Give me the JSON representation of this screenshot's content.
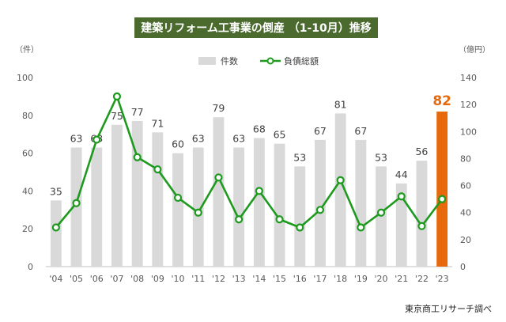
{
  "chart_data": {
    "type": "bar+line",
    "title": "建築リフォーム工事業の倒産 （1-10月）推移",
    "categories": [
      "'04",
      "'05",
      "'06",
      "'07",
      "'08",
      "'09",
      "'10",
      "'11",
      "'12",
      "'13",
      "'14",
      "'15",
      "'16",
      "'17",
      "'18",
      "'19",
      "'20",
      "'21",
      "'22",
      "'23"
    ],
    "series": [
      {
        "name": "件数",
        "type": "bar",
        "axis": "left",
        "values": [
          35,
          63,
          63,
          75,
          77,
          71,
          60,
          63,
          79,
          63,
          68,
          65,
          53,
          67,
          81,
          67,
          53,
          44,
          56,
          82
        ],
        "color": "#d9d9d9",
        "highlight_color": "#e8690c",
        "highlight_index": 19
      },
      {
        "name": "負債総額",
        "type": "line",
        "axis": "right",
        "values": [
          29,
          47,
          94,
          126,
          81,
          72,
          51,
          40,
          66,
          35,
          56,
          35,
          29,
          42,
          64,
          29,
          40,
          52,
          30,
          50
        ],
        "color": "#1e9a1e"
      }
    ],
    "left_axis": {
      "unit": "（件）",
      "min": 0,
      "max": 100,
      "step": 20
    },
    "right_axis": {
      "unit": "（億円）",
      "min": 0,
      "max": 140,
      "step": 20
    },
    "legend_position": "top-center",
    "grid": false
  },
  "source": "東京商工リサーチ調べ"
}
